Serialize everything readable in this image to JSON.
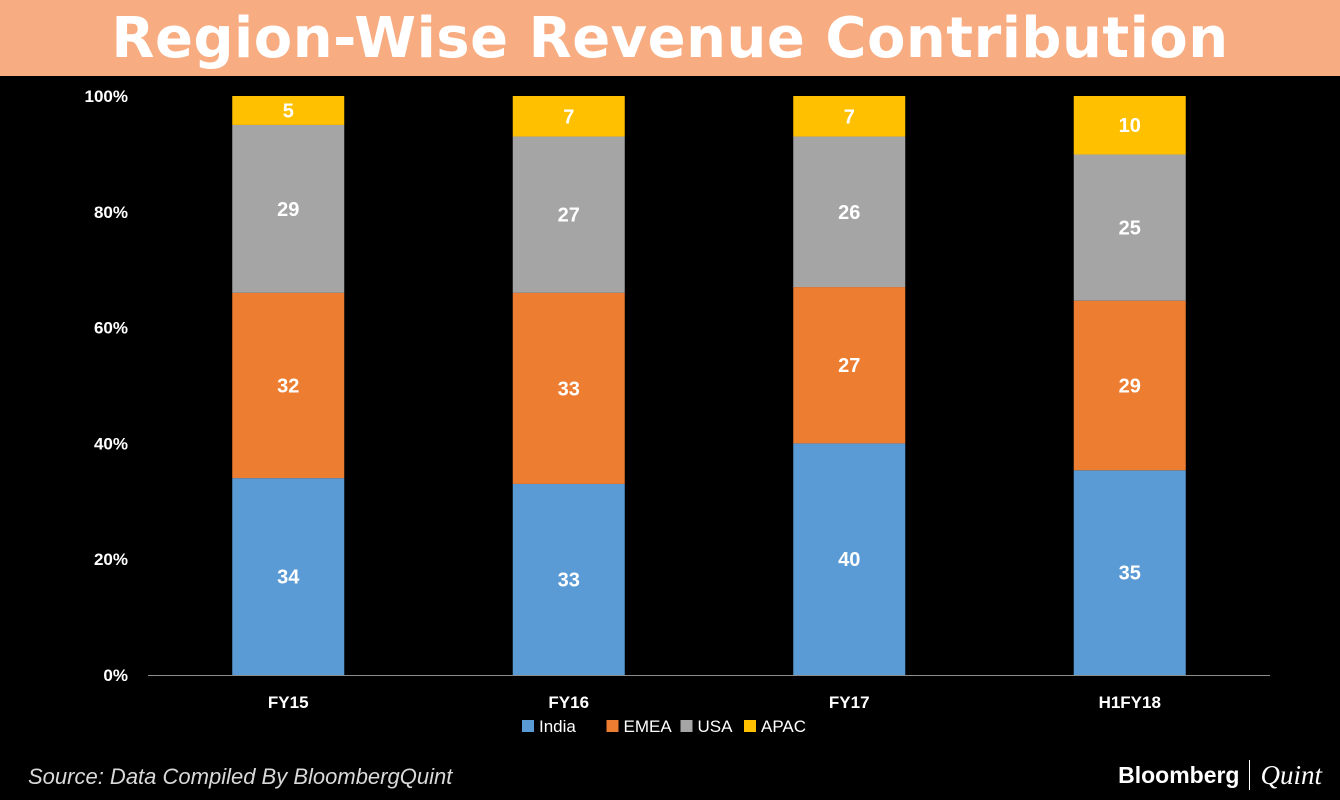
{
  "title": "Region-Wise Revenue Contribution",
  "source": "Source: Data Compiled By BloombergQuint",
  "brand": {
    "bloomberg": "Bloomberg",
    "quint": "Quint"
  },
  "chart_data": {
    "type": "bar",
    "stacked": true,
    "percent_stacked": true,
    "title": "Region-Wise Revenue Contribution",
    "categories": [
      "FY15",
      "FY16",
      "FY17",
      "H1FY18"
    ],
    "series": [
      {
        "name": "India",
        "color": "#5b9bd5",
        "values": [
          34,
          33,
          40,
          35
        ]
      },
      {
        "name": "EMEA",
        "color": "#ed7d31",
        "values": [
          32,
          33,
          27,
          29
        ]
      },
      {
        "name": "USA",
        "color": "#a5a5a5",
        "values": [
          29,
          27,
          26,
          25
        ]
      },
      {
        "name": "APAC",
        "color": "#ffc000",
        "values": [
          5,
          7,
          7,
          10
        ]
      }
    ],
    "ylim": [
      0,
      100
    ],
    "yticks": [
      "0%",
      "20%",
      "40%",
      "60%",
      "80%",
      "100%"
    ],
    "legend": "bottom",
    "grid": false
  }
}
